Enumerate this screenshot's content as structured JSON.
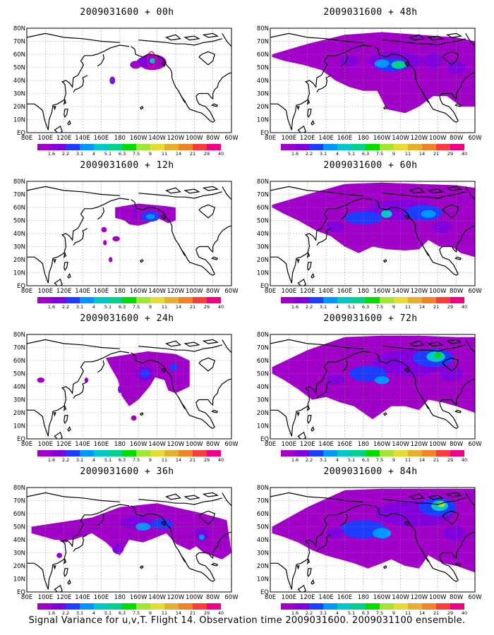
{
  "figure": {
    "caption": "Signal Variance for u,v,T. Flight 14. Observation time 2009031600. 2009031100 ensemble."
  },
  "map": {
    "lon_labels": [
      "80E",
      "100E",
      "120E",
      "140E",
      "160E",
      "180",
      "160W",
      "140W",
      "120W",
      "100W",
      "80W",
      "60W"
    ],
    "lat_labels": [
      "80N",
      "70N",
      "60N",
      "50N",
      "40N",
      "30N",
      "20N",
      "10N",
      "EQ"
    ]
  },
  "colorbar": {
    "labels": [
      "1.6",
      "2.2",
      "3.1",
      "4",
      "5.1",
      "6.3",
      "7.5",
      "9",
      "11",
      "14",
      "21",
      "29",
      "40"
    ],
    "colors": [
      "#a000c8",
      "#8200dc",
      "#1e3cff",
      "#0096ff",
      "#00c8c8",
      "#00d28c",
      "#00dc00",
      "#a0e632",
      "#e6dc32",
      "#e6af2d",
      "#f08228",
      "#fa3c3c",
      "#f00082"
    ]
  },
  "panels": [
    {
      "title": "2009031600 + 00h"
    },
    {
      "title": "2009031600 + 12h"
    },
    {
      "title": "2009031600 + 24h"
    },
    {
      "title": "2009031600 + 36h"
    },
    {
      "title": "2009031600 + 48h"
    },
    {
      "title": "2009031600 + 60h"
    },
    {
      "title": "2009031600 + 72h"
    },
    {
      "title": "2009031600 + 84h"
    }
  ]
}
